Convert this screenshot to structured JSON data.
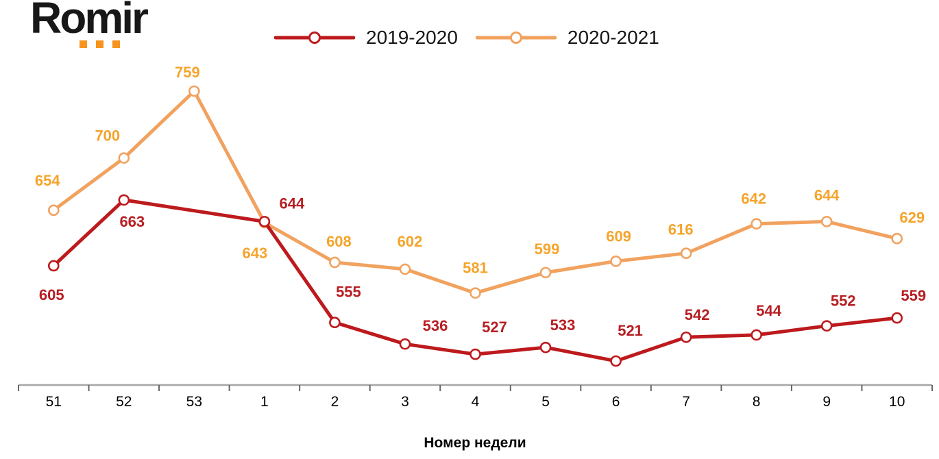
{
  "logo": {
    "text": "Romir"
  },
  "chart_data": {
    "type": "line",
    "categories": [
      "51",
      "52",
      "53",
      "1",
      "2",
      "3",
      "4",
      "5",
      "6",
      "7",
      "8",
      "9",
      "10"
    ],
    "series": [
      {
        "name": "2019-2020",
        "color": "#bd1a1d",
        "label_color": "#b71e23",
        "values": [
          605,
          663,
          null,
          644,
          555,
          536,
          527,
          533,
          521,
          542,
          544,
          552,
          559
        ]
      },
      {
        "name": "2020-2021",
        "color": "#f1a25f",
        "label_color": "#f5a42b",
        "values": [
          654,
          700,
          759,
          643,
          608,
          602,
          581,
          599,
          609,
          616,
          642,
          644,
          629
        ]
      }
    ],
    "title": "",
    "xlabel": "Номер недели",
    "ylabel": "",
    "ylim": [
      500,
      780
    ],
    "grid": false,
    "y_axis_visible": false,
    "legend_position": "top",
    "marker": "open-circle"
  },
  "colors": {
    "axis_line": "#a6a6a6",
    "tick": "#666666",
    "tick_text": "#000000",
    "legend_text": "#161616",
    "logo_text": "#181818",
    "logo_dot": "#f7941e",
    "background": "#ffffff"
  }
}
